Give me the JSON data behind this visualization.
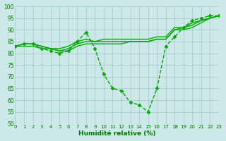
{
  "xlabel": "Humidité relative (%)",
  "background_color": "#cce8e8",
  "grid_color": "#aacccc",
  "line_color": "#00aa00",
  "xlim": [
    0,
    23
  ],
  "ylim": [
    50,
    100
  ],
  "yticks": [
    50,
    55,
    60,
    65,
    70,
    75,
    80,
    85,
    90,
    95,
    100
  ],
  "xticks": [
    0,
    1,
    2,
    3,
    4,
    5,
    6,
    7,
    8,
    9,
    10,
    11,
    12,
    13,
    14,
    15,
    16,
    17,
    18,
    19,
    20,
    21,
    22,
    23
  ],
  "series": [
    {
      "x": [
        0,
        1,
        2,
        3,
        4,
        5,
        6,
        7,
        8,
        9,
        10,
        11,
        12,
        13,
        14,
        15,
        16,
        17,
        18,
        19,
        20,
        21,
        22,
        23
      ],
      "y": [
        83,
        84,
        84,
        82,
        81,
        80,
        81,
        85,
        89,
        82,
        71,
        65,
        64,
        59,
        58,
        55,
        65,
        83,
        87,
        91,
        94,
        95,
        96,
        96
      ],
      "marker": "D",
      "markersize": 2.5,
      "linestyle": "--",
      "linewidth": 1.0
    },
    {
      "x": [
        0,
        1,
        2,
        3,
        4,
        5,
        6,
        7,
        8,
        9,
        10,
        11,
        12,
        13,
        14,
        15,
        16,
        17,
        18,
        19,
        20,
        21,
        22,
        23
      ],
      "y": [
        83,
        84,
        84,
        83,
        82,
        82,
        83,
        85,
        86,
        85,
        86,
        86,
        86,
        86,
        86,
        86,
        87,
        87,
        91,
        91,
        93,
        94,
        95,
        96
      ],
      "marker": null,
      "linestyle": "-",
      "linewidth": 1.0
    },
    {
      "x": [
        0,
        1,
        2,
        3,
        4,
        5,
        6,
        7,
        8,
        9,
        10,
        11,
        12,
        13,
        14,
        15,
        16,
        17,
        18,
        19,
        20,
        21,
        22,
        23
      ],
      "y": [
        83,
        84,
        84,
        83,
        82,
        81,
        82,
        84,
        85,
        85,
        85,
        85,
        85,
        85,
        85,
        85,
        86,
        86,
        90,
        91,
        92,
        94,
        95,
        96
      ],
      "marker": null,
      "linestyle": "-",
      "linewidth": 1.0
    },
    {
      "x": [
        0,
        1,
        2,
        3,
        4,
        5,
        6,
        7,
        8,
        9,
        10,
        11,
        12,
        13,
        14,
        15,
        16,
        17,
        18,
        19,
        20,
        21,
        22,
        23
      ],
      "y": [
        83,
        83,
        83,
        82,
        82,
        81,
        81,
        83,
        84,
        84,
        84,
        84,
        84,
        85,
        85,
        85,
        86,
        86,
        90,
        90,
        91,
        93,
        95,
        96
      ],
      "marker": null,
      "linestyle": "-",
      "linewidth": 1.0
    }
  ]
}
